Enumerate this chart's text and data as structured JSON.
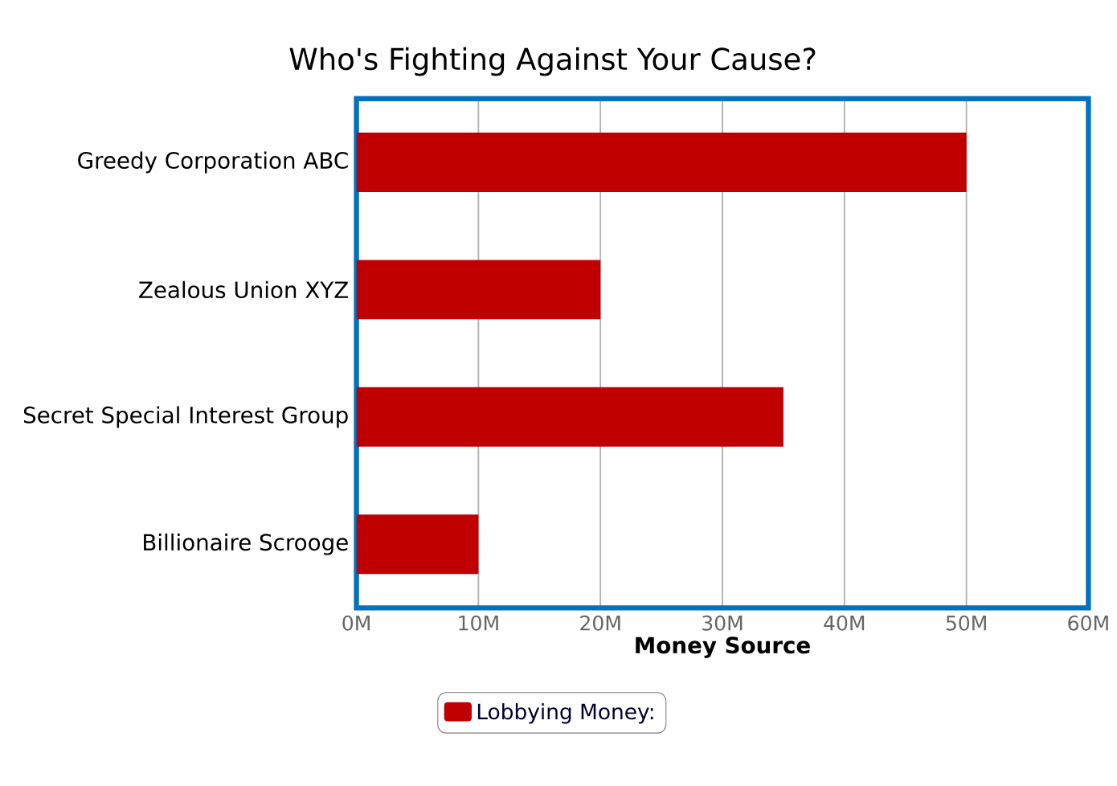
{
  "chart_data": {
    "type": "bar",
    "orientation": "horizontal",
    "title": "Who's Fighting Against Your Cause?",
    "xlabel": "Money Source",
    "categories": [
      "Greedy Corporation ABC",
      "Zealous Union XYZ",
      "Secret Special Interest Group",
      "Billionaire Scrooge"
    ],
    "series": [
      {
        "name": "Lobbying Money:",
        "color": "#c00000",
        "values": [
          50,
          20,
          35,
          10
        ]
      }
    ],
    "xlim": [
      0,
      60
    ],
    "xticks": [
      {
        "value": 0,
        "label": "0M"
      },
      {
        "value": 10,
        "label": "10M"
      },
      {
        "value": 20,
        "label": "20M"
      },
      {
        "value": 30,
        "label": "30M"
      },
      {
        "value": 40,
        "label": "40M"
      },
      {
        "value": 50,
        "label": "50M"
      },
      {
        "value": 60,
        "label": "60M"
      }
    ],
    "grid": "x",
    "legend": "bottom"
  }
}
